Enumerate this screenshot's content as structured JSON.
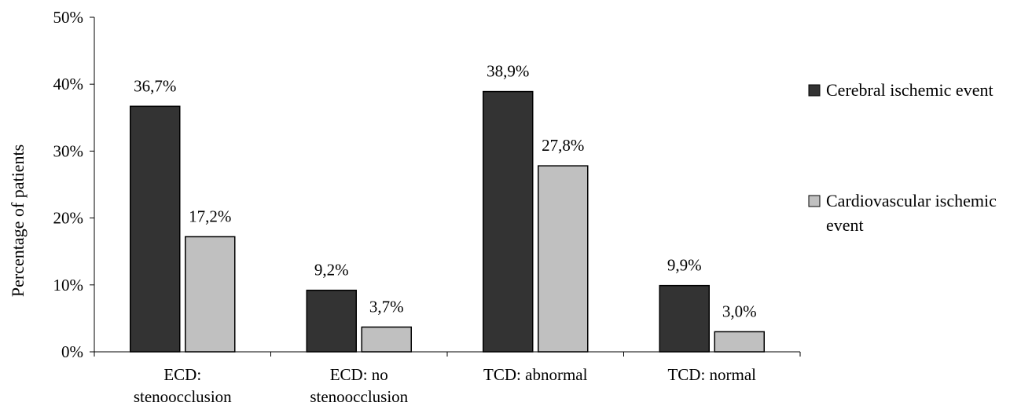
{
  "chart_data": {
    "type": "bar",
    "title": "",
    "xlabel": "",
    "ylabel": "Percentage of patients",
    "ylim": [
      0,
      50
    ],
    "y_ticks": [
      "0%",
      "10%",
      "20%",
      "30%",
      "40%",
      "50%"
    ],
    "y_tick_values": [
      0,
      10,
      20,
      30,
      40,
      50
    ],
    "categories": [
      [
        "ECD:",
        "stenoocclusion"
      ],
      [
        "ECD: no",
        "stenoocclusion"
      ],
      [
        "TCD: abnormal"
      ],
      [
        "TCD: normal"
      ]
    ],
    "series": [
      {
        "name": "Cerebral ischemic event",
        "legend_lines": [
          "Cerebral ischemic event"
        ],
        "color": "#333333",
        "values": [
          36.7,
          9.2,
          38.9,
          9.9
        ],
        "labels": [
          "36,7%",
          "9,2%",
          "38,9%",
          "9,9%"
        ]
      },
      {
        "name": "Cardiovascular ischemic event",
        "legend_lines": [
          "Cardiovascular ischemic",
          "event"
        ],
        "color": "#c0c0c0",
        "values": [
          17.2,
          3.7,
          27.8,
          3.0
        ],
        "labels": [
          "17,2%",
          "3,7%",
          "27,8%",
          "3,0%"
        ]
      }
    ],
    "grid": false,
    "legend_position": "right"
  }
}
